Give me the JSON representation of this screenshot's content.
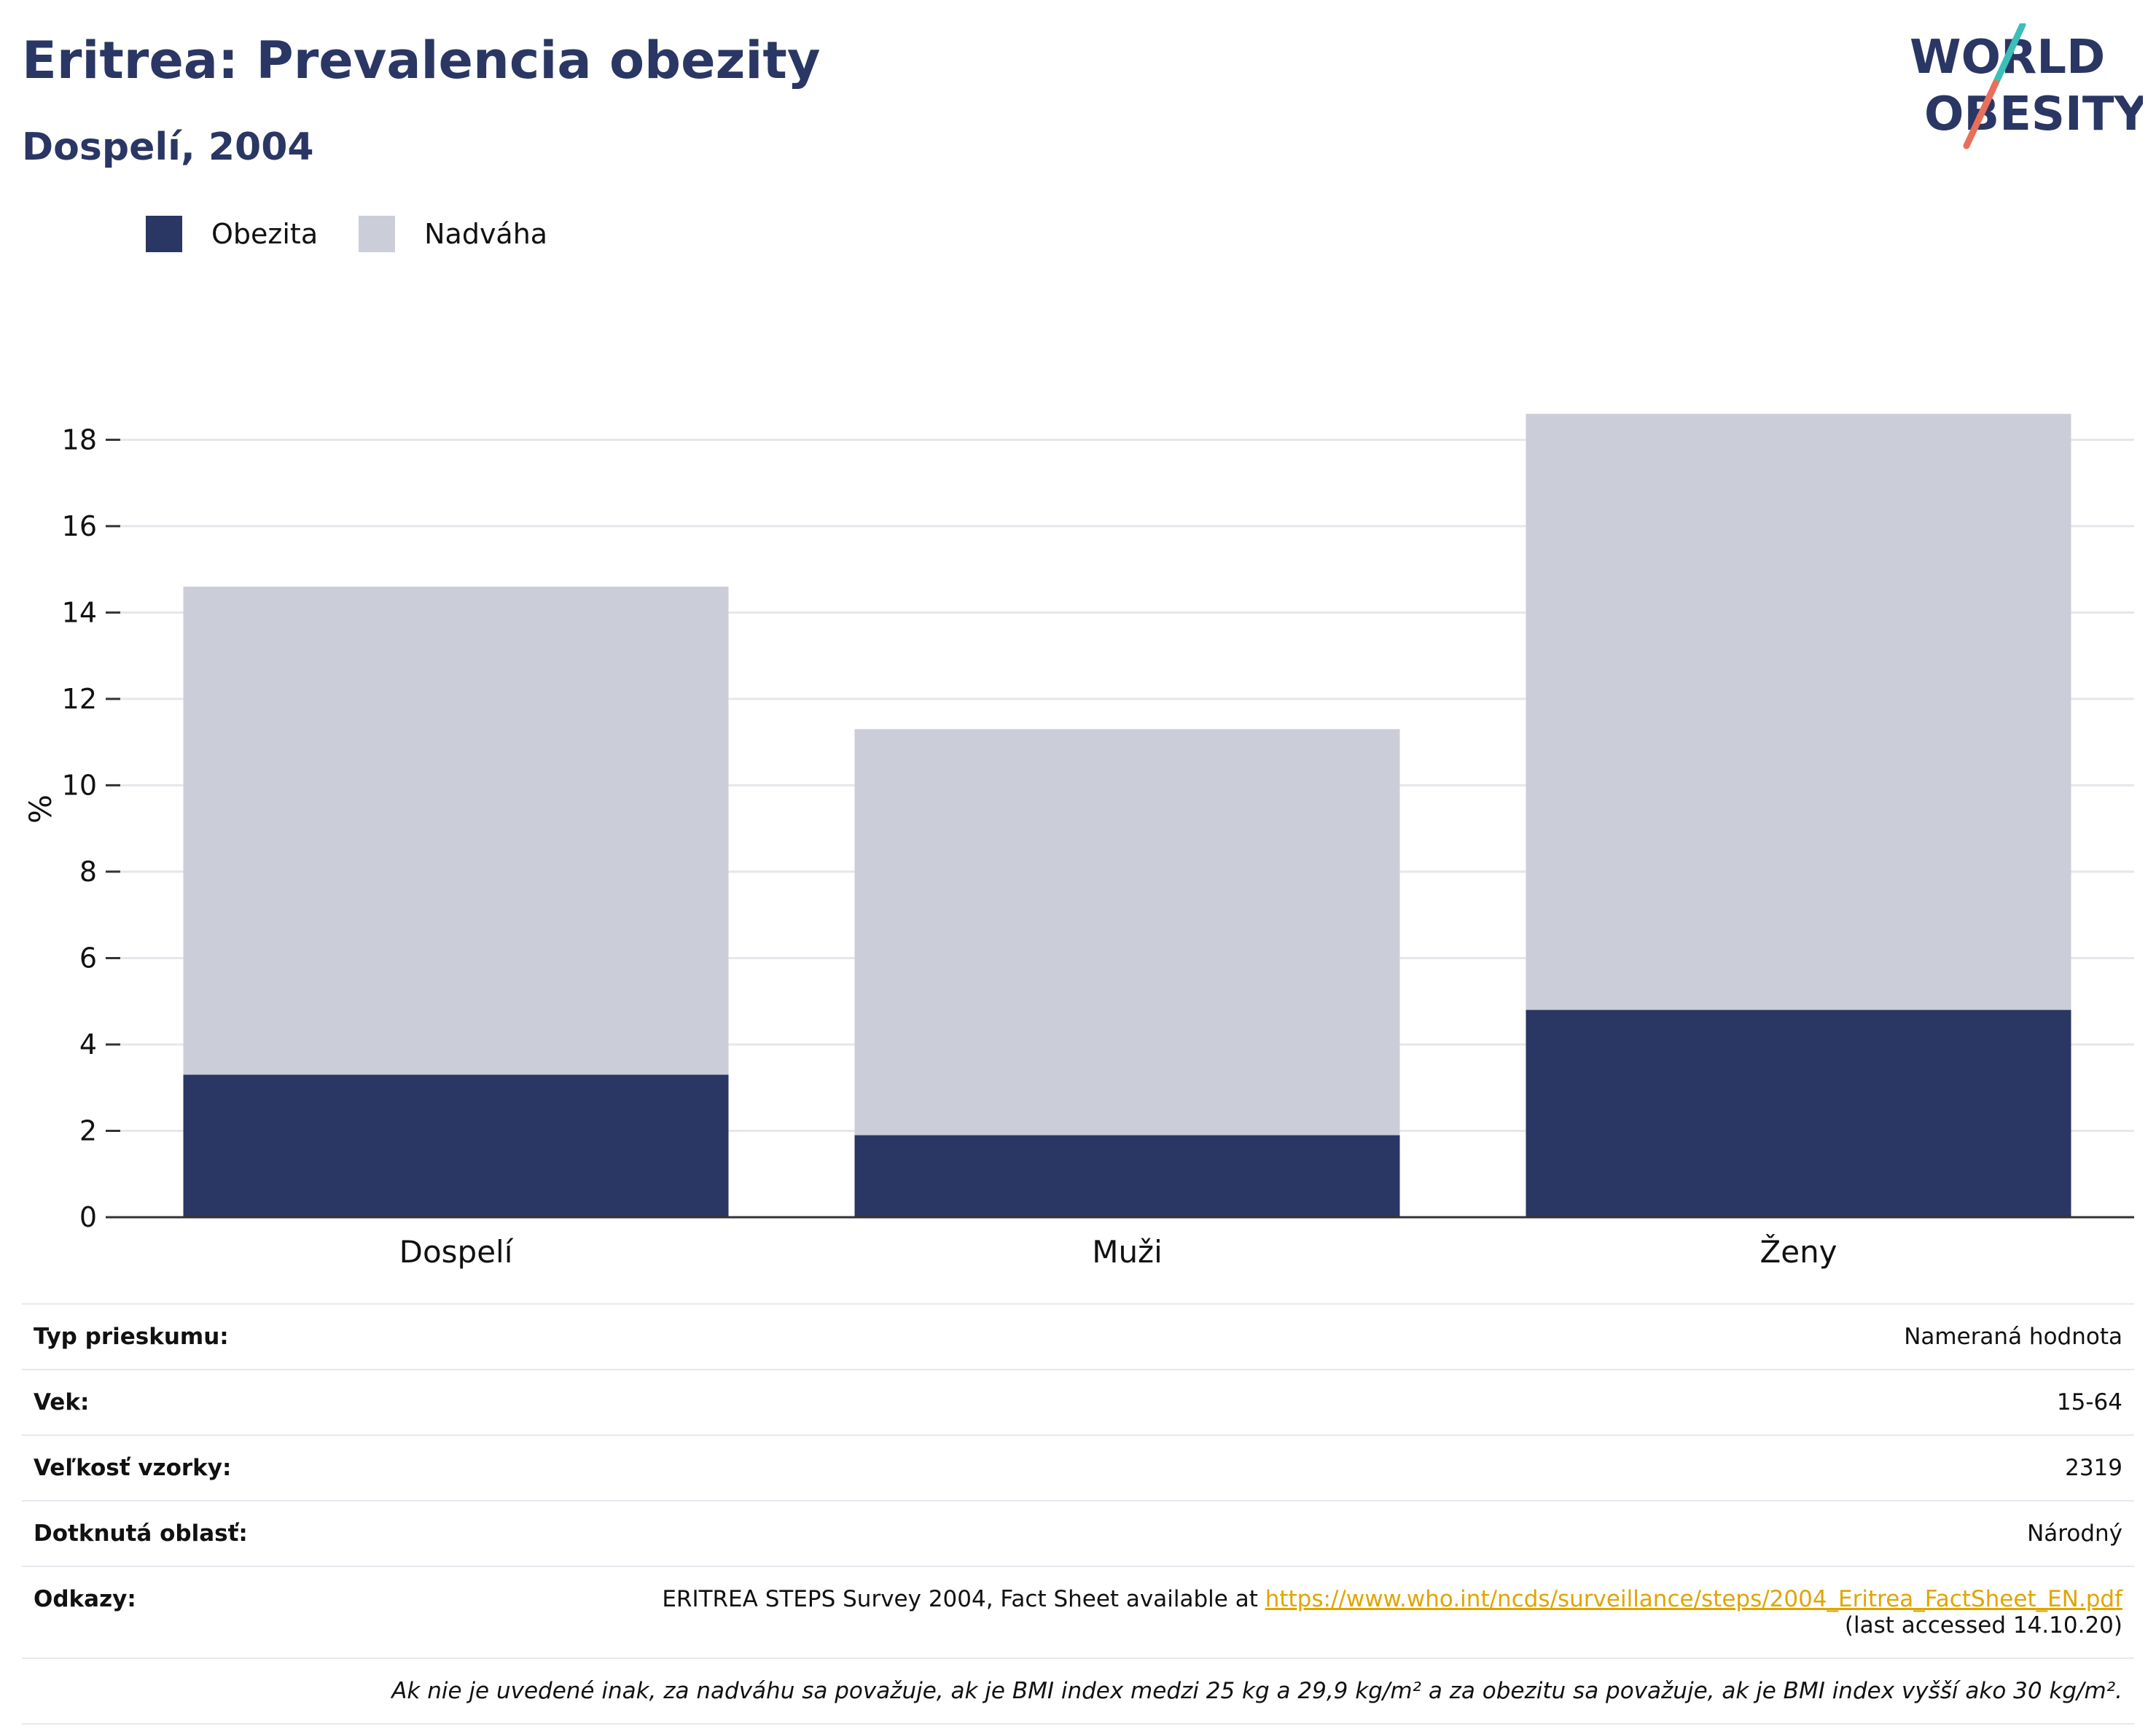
{
  "header": {
    "title": "Eritrea: Prevalencia obezity",
    "subtitle": "Dospelí, 2004"
  },
  "logo": {
    "line1": "WORLD",
    "line2": "OBESITY",
    "colors": {
      "text": "#2a3663",
      "slash_teal": "#3bbfb8",
      "slash_coral": "#e8705a"
    }
  },
  "colors": {
    "obesity": "#2a3663",
    "overweight": "#cbcdd8",
    "grid": "#e6e6ec",
    "axis": "#333333"
  },
  "chart_data": {
    "type": "bar",
    "stacked": true,
    "categories": [
      "Dospelí",
      "Muži",
      "Ženy"
    ],
    "series": [
      {
        "name": "Obezita",
        "values": [
          3.3,
          1.9,
          4.8
        ]
      },
      {
        "name": "Nadváha",
        "values": [
          11.3,
          9.4,
          13.8
        ]
      }
    ],
    "totals": [
      14.6,
      11.3,
      18.6
    ],
    "title": "",
    "xlabel": "",
    "ylabel": "%",
    "ylim": [
      0,
      18.9
    ],
    "yticks": [
      0,
      2,
      4,
      6,
      8,
      10,
      12,
      14,
      16,
      18
    ],
    "grid": true,
    "legend": "top-left"
  },
  "info": {
    "rows": [
      {
        "label": "Typ prieskumu:",
        "value": "Nameraná hodnota"
      },
      {
        "label": "Vek:",
        "value": "15-64"
      },
      {
        "label": "Veľkosť vzorky:",
        "value": "2319"
      },
      {
        "label": "Dotknutá oblasť:",
        "value": "Národný"
      }
    ],
    "references": {
      "label": "Odkazy:",
      "text": "ERITREA STEPS Survey 2004, Fact Sheet available at ",
      "link": "https://www.who.int/ncds/surveillance/steps/2004_Eritrea_FactSheet_EN.pdf",
      "accessed": "(last accessed 14.10.20)"
    },
    "note": "Ak nie je uvedené inak, za nadváhu sa považuje, ak je BMI index medzi 25 kg a 29,9 kg/m² a za obezitu sa považuje, ak je BMI index vyšší ako 30 kg/m²."
  }
}
